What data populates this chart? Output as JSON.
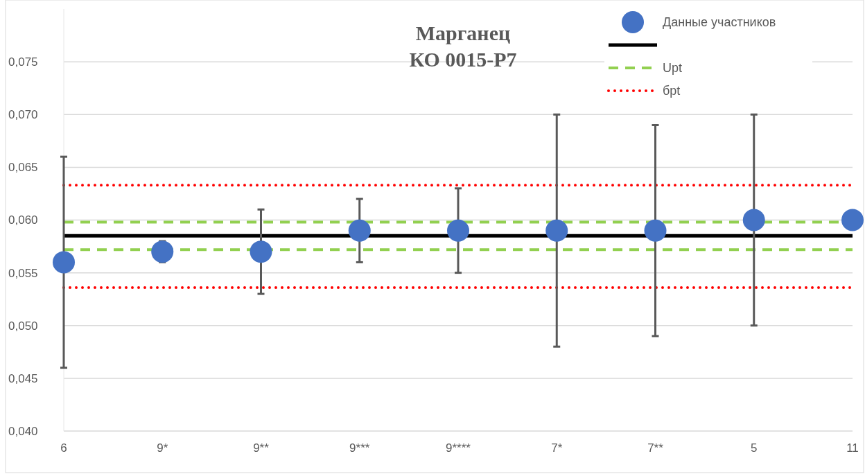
{
  "chart_data": {
    "type": "scatter",
    "title": "Марганец\nКО 0015-Р7",
    "categories": [
      "6",
      "9*",
      "9**",
      "9***",
      "9****",
      "7*",
      "7**",
      "5",
      "11"
    ],
    "series": [
      {
        "name": "Данные участников",
        "color": "#4472c4",
        "values": [
          0.056,
          0.057,
          0.057,
          0.059,
          0.059,
          0.059,
          0.059,
          0.06,
          0.06
        ],
        "errors": [
          [
            0.046,
            0.066
          ],
          [
            0.056,
            0.058
          ],
          [
            0.053,
            0.061
          ],
          [
            0.056,
            0.062
          ],
          [
            0.055,
            0.063
          ],
          [
            0.048,
            0.07
          ],
          [
            0.049,
            0.069
          ],
          [
            0.05,
            0.07
          ],
          null
        ]
      }
    ],
    "ref_lines": [
      {
        "axis": "y",
        "value": 0.0585,
        "color": "#000000",
        "line_style": "solid"
      },
      {
        "axis": "y",
        "value": 0.0598,
        "label": "Upt",
        "color": "#92d050",
        "line_style": "dashed"
      },
      {
        "axis": "y",
        "value": 0.0572,
        "color": "#92d050",
        "line_style": "dashed"
      },
      {
        "axis": "y",
        "value": 0.0633,
        "label": "бpt",
        "color": "#ff0000",
        "line_style": "dotted"
      },
      {
        "axis": "y",
        "value": 0.0536,
        "color": "#ff0000",
        "line_style": "dotted"
      }
    ],
    "ylim": [
      0.04,
      0.08
    ],
    "yticks": [
      {
        "value": 0.04,
        "label": "0,040"
      },
      {
        "value": 0.045,
        "label": "0,045"
      },
      {
        "value": 0.05,
        "label": "0,050"
      },
      {
        "value": 0.055,
        "label": "0,055"
      },
      {
        "value": 0.06,
        "label": "0,060"
      },
      {
        "value": 0.065,
        "label": "0,065"
      },
      {
        "value": 0.07,
        "label": "0,070"
      },
      {
        "value": 0.075,
        "label": "0,075"
      }
    ],
    "grid": "y",
    "legend": "top right",
    "marker": "circle"
  }
}
